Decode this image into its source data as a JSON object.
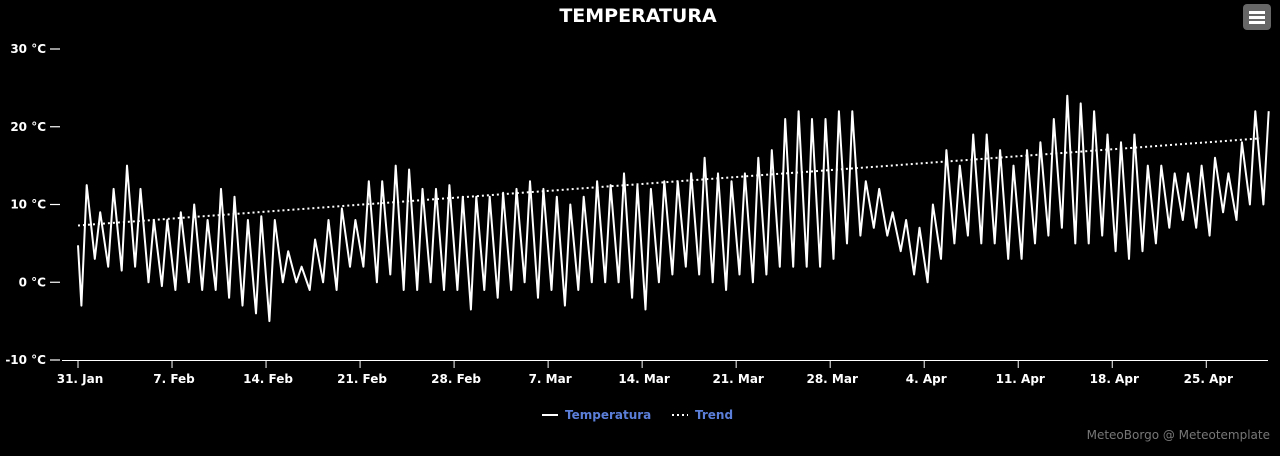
{
  "chart_data": {
    "type": "line",
    "title": "TEMPERATURA",
    "ylim": [
      -10,
      30
    ],
    "y_ticks": [
      {
        "value": 30,
        "label": "30 °C"
      },
      {
        "value": 20,
        "label": "20 °C"
      },
      {
        "value": 10,
        "label": "10 °C"
      },
      {
        "value": 0,
        "label": "0 °C"
      },
      {
        "value": -10,
        "label": "-10 °C"
      }
    ],
    "x_range": [
      "2022-01-31",
      "2022-04-29"
    ],
    "x_ticks": [
      {
        "date": "2022-01-31",
        "label": "31. Jan"
      },
      {
        "date": "2022-02-07",
        "label": "7. Feb"
      },
      {
        "date": "2022-02-14",
        "label": "14. Feb"
      },
      {
        "date": "2022-02-21",
        "label": "21. Feb"
      },
      {
        "date": "2022-02-28",
        "label": "28. Feb"
      },
      {
        "date": "2022-03-07",
        "label": "7. Mar"
      },
      {
        "date": "2022-03-14",
        "label": "14. Mar"
      },
      {
        "date": "2022-03-21",
        "label": "21. Mar"
      },
      {
        "date": "2022-03-28",
        "label": "28. Mar"
      },
      {
        "date": "2022-04-04",
        "label": "4. Apr"
      },
      {
        "date": "2022-04-11",
        "label": "11. Apr"
      },
      {
        "date": "2022-04-18",
        "label": "18. Apr"
      },
      {
        "date": "2022-04-25",
        "label": "25. Apr"
      }
    ],
    "grid": false,
    "legend_position": "bottom-center",
    "series": [
      {
        "name": "Temperatura",
        "style": "solid",
        "color": "#ffffff",
        "daily_extremes": [
          {
            "date": "2022-01-31",
            "min": -3,
            "max": 12.5
          },
          {
            "date": "2022-02-01",
            "min": 3,
            "max": 9
          },
          {
            "date": "2022-02-02",
            "min": 2,
            "max": 12
          },
          {
            "date": "2022-02-03",
            "min": 1.5,
            "max": 15
          },
          {
            "date": "2022-02-04",
            "min": 2,
            "max": 12
          },
          {
            "date": "2022-02-05",
            "min": 0,
            "max": 8
          },
          {
            "date": "2022-02-06",
            "min": -0.5,
            "max": 8
          },
          {
            "date": "2022-02-07",
            "min": -1,
            "max": 9
          },
          {
            "date": "2022-02-08",
            "min": 0,
            "max": 10
          },
          {
            "date": "2022-02-09",
            "min": -1,
            "max": 8
          },
          {
            "date": "2022-02-10",
            "min": -1,
            "max": 12
          },
          {
            "date": "2022-02-11",
            "min": -2,
            "max": 11
          },
          {
            "date": "2022-02-12",
            "min": -3,
            "max": 8
          },
          {
            "date": "2022-02-13",
            "min": -4,
            "max": 8.5
          },
          {
            "date": "2022-02-14",
            "min": -5,
            "max": 8
          },
          {
            "date": "2022-02-15",
            "min": 0,
            "max": 4
          },
          {
            "date": "2022-02-16",
            "min": 0,
            "max": 2
          },
          {
            "date": "2022-02-17",
            "min": -1,
            "max": 5.5
          },
          {
            "date": "2022-02-18",
            "min": 0,
            "max": 8
          },
          {
            "date": "2022-02-19",
            "min": -1,
            "max": 9.5
          },
          {
            "date": "2022-02-20",
            "min": 2,
            "max": 8
          },
          {
            "date": "2022-02-21",
            "min": 2,
            "max": 13
          },
          {
            "date": "2022-02-22",
            "min": 0,
            "max": 13
          },
          {
            "date": "2022-02-23",
            "min": 1,
            "max": 15
          },
          {
            "date": "2022-02-24",
            "min": -1,
            "max": 14.5
          },
          {
            "date": "2022-02-25",
            "min": -1,
            "max": 12
          },
          {
            "date": "2022-02-26",
            "min": 0,
            "max": 12
          },
          {
            "date": "2022-02-27",
            "min": -1,
            "max": 12.5
          },
          {
            "date": "2022-02-28",
            "min": -1,
            "max": 11
          },
          {
            "date": "2022-03-01",
            "min": -3.5,
            "max": 11
          },
          {
            "date": "2022-03-02",
            "min": -1,
            "max": 11
          },
          {
            "date": "2022-03-03",
            "min": -2,
            "max": 11.5
          },
          {
            "date": "2022-03-04",
            "min": -1,
            "max": 12
          },
          {
            "date": "2022-03-05",
            "min": 0,
            "max": 13
          },
          {
            "date": "2022-03-06",
            "min": -2,
            "max": 12
          },
          {
            "date": "2022-03-07",
            "min": -1,
            "max": 11
          },
          {
            "date": "2022-03-08",
            "min": -3,
            "max": 10
          },
          {
            "date": "2022-03-09",
            "min": -1,
            "max": 11
          },
          {
            "date": "2022-03-10",
            "min": 0,
            "max": 13
          },
          {
            "date": "2022-03-11",
            "min": 0,
            "max": 12.5
          },
          {
            "date": "2022-03-12",
            "min": 0,
            "max": 14
          },
          {
            "date": "2022-03-13",
            "min": -2,
            "max": 12.5
          },
          {
            "date": "2022-03-14",
            "min": -3.5,
            "max": 12
          },
          {
            "date": "2022-03-15",
            "min": 0,
            "max": 13
          },
          {
            "date": "2022-03-16",
            "min": 1,
            "max": 13
          },
          {
            "date": "2022-03-17",
            "min": 2,
            "max": 14
          },
          {
            "date": "2022-03-18",
            "min": 1,
            "max": 16
          },
          {
            "date": "2022-03-19",
            "min": 0,
            "max": 14
          },
          {
            "date": "2022-03-20",
            "min": -1,
            "max": 13
          },
          {
            "date": "2022-03-21",
            "min": 1,
            "max": 14
          },
          {
            "date": "2022-03-22",
            "min": 0,
            "max": 16
          },
          {
            "date": "2022-03-23",
            "min": 1,
            "max": 17
          },
          {
            "date": "2022-03-24",
            "min": 2,
            "max": 21
          },
          {
            "date": "2022-03-25",
            "min": 2,
            "max": 22
          },
          {
            "date": "2022-03-26",
            "min": 2,
            "max": 21
          },
          {
            "date": "2022-03-27",
            "min": 2,
            "max": 21
          },
          {
            "date": "2022-03-28",
            "min": 3,
            "max": 22
          },
          {
            "date": "2022-03-29",
            "min": 5,
            "max": 22
          },
          {
            "date": "2022-03-30",
            "min": 6,
            "max": 13
          },
          {
            "date": "2022-03-31",
            "min": 7,
            "max": 12
          },
          {
            "date": "2022-04-01",
            "min": 6,
            "max": 9
          },
          {
            "date": "2022-04-02",
            "min": 4,
            "max": 8
          },
          {
            "date": "2022-04-03",
            "min": 1,
            "max": 7
          },
          {
            "date": "2022-04-04",
            "min": 0,
            "max": 10
          },
          {
            "date": "2022-04-05",
            "min": 3,
            "max": 17
          },
          {
            "date": "2022-04-06",
            "min": 5,
            "max": 15
          },
          {
            "date": "2022-04-07",
            "min": 6,
            "max": 19
          },
          {
            "date": "2022-04-08",
            "min": 5,
            "max": 19
          },
          {
            "date": "2022-04-09",
            "min": 5,
            "max": 17
          },
          {
            "date": "2022-04-10",
            "min": 3,
            "max": 15
          },
          {
            "date": "2022-04-11",
            "min": 3,
            "max": 17
          },
          {
            "date": "2022-04-12",
            "min": 5,
            "max": 18
          },
          {
            "date": "2022-04-13",
            "min": 6,
            "max": 21
          },
          {
            "date": "2022-04-14",
            "min": 7,
            "max": 24
          },
          {
            "date": "2022-04-15",
            "min": 5,
            "max": 23
          },
          {
            "date": "2022-04-16",
            "min": 5,
            "max": 22
          },
          {
            "date": "2022-04-17",
            "min": 6,
            "max": 19
          },
          {
            "date": "2022-04-18",
            "min": 4,
            "max": 18
          },
          {
            "date": "2022-04-19",
            "min": 3,
            "max": 19
          },
          {
            "date": "2022-04-20",
            "min": 4,
            "max": 15
          },
          {
            "date": "2022-04-21",
            "min": 5,
            "max": 15
          },
          {
            "date": "2022-04-22",
            "min": 7,
            "max": 14
          },
          {
            "date": "2022-04-23",
            "min": 8,
            "max": 14
          },
          {
            "date": "2022-04-24",
            "min": 7,
            "max": 15
          },
          {
            "date": "2022-04-25",
            "min": 6,
            "max": 16
          },
          {
            "date": "2022-04-26",
            "min": 9,
            "max": 14
          },
          {
            "date": "2022-04-27",
            "min": 8,
            "max": 18
          },
          {
            "date": "2022-04-28",
            "min": 10,
            "max": 22
          },
          {
            "date": "2022-04-29",
            "min": 10,
            "max": 22
          }
        ]
      },
      {
        "name": "Trend",
        "style": "dotted",
        "color": "#ffffff",
        "points": [
          {
            "date": "2022-01-31",
            "value": 7.3
          },
          {
            "date": "2022-04-29",
            "value": 18.5
          }
        ]
      }
    ]
  },
  "credit": "MeteoBorgo @ Meteotemplate"
}
